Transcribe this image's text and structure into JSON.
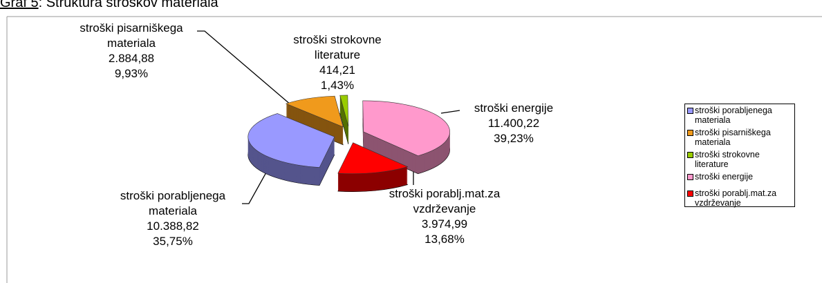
{
  "chart_data": {
    "type": "pie3d",
    "title_prefix": "Graf 5",
    "title": ": Struktura stroškov materiala",
    "categories": [
      "stroški porabljenega materiala",
      "stroški pisarniškega materiala",
      "stroški strokovne literature",
      "stroški energije",
      "stroški porablj.mat.za vzdrževanje"
    ],
    "values": [
      10388.82,
      2884.88,
      414.21,
      11400.22,
      3974.99
    ],
    "value_labels": [
      "10.388,82",
      "2.884,88",
      "414,21",
      "11.400,22",
      "3.974,99"
    ],
    "percents": [
      35.75,
      9.93,
      1.43,
      39.23,
      13.68
    ],
    "percent_labels": [
      "35,75%",
      "9,93%",
      "1,43%",
      "39,23%",
      "13,68%"
    ],
    "colors": [
      "#9999ff",
      "#f09a1c",
      "#99cc00",
      "#ff99cc",
      "#ff0000"
    ],
    "legend": "right"
  }
}
